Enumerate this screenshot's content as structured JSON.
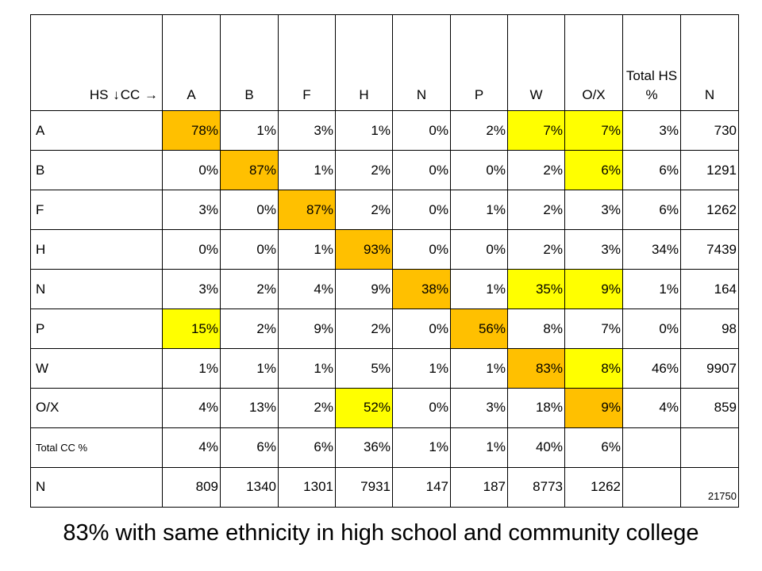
{
  "chart_data": {
    "type": "table",
    "corner": {
      "row_label": "HS",
      "row_arrow": "down-arrow-icon",
      "col_label": "CC",
      "col_arrow": "right-arrow-icon"
    },
    "columns": [
      "A",
      "B",
      "F",
      "H",
      "N",
      "P",
      "W",
      "O/X",
      "Total HS %",
      "N"
    ],
    "rows": [
      {
        "label": "A",
        "cells": [
          "78%",
          "1%",
          "3%",
          "1%",
          "0%",
          "2%",
          "7%",
          "7%",
          "3%",
          "730"
        ],
        "highlight": [
          "orange",
          null,
          null,
          null,
          null,
          null,
          "yellow",
          "yellow",
          null,
          null
        ]
      },
      {
        "label": "B",
        "cells": [
          "0%",
          "87%",
          "1%",
          "2%",
          "0%",
          "0%",
          "2%",
          "6%",
          "6%",
          "1291"
        ],
        "highlight": [
          null,
          "orange",
          null,
          null,
          null,
          null,
          null,
          "yellow",
          null,
          null
        ]
      },
      {
        "label": "F",
        "cells": [
          "3%",
          "0%",
          "87%",
          "2%",
          "0%",
          "1%",
          "2%",
          "3%",
          "6%",
          "1262"
        ],
        "highlight": [
          null,
          null,
          "orange",
          null,
          null,
          null,
          null,
          null,
          null,
          null
        ]
      },
      {
        "label": "H",
        "cells": [
          "0%",
          "0%",
          "1%",
          "93%",
          "0%",
          "0%",
          "2%",
          "3%",
          "34%",
          "7439"
        ],
        "highlight": [
          null,
          null,
          null,
          "orange",
          null,
          null,
          null,
          null,
          null,
          null
        ]
      },
      {
        "label": "N",
        "cells": [
          "3%",
          "2%",
          "4%",
          "9%",
          "38%",
          "1%",
          "35%",
          "9%",
          "1%",
          "164"
        ],
        "highlight": [
          null,
          null,
          null,
          null,
          "orange",
          null,
          "yellow",
          "yellow",
          null,
          null
        ]
      },
      {
        "label": "P",
        "cells": [
          "15%",
          "2%",
          "9%",
          "2%",
          "0%",
          "56%",
          "8%",
          "7%",
          "0%",
          "98"
        ],
        "highlight": [
          "yellow",
          null,
          null,
          null,
          null,
          "orange",
          null,
          null,
          null,
          null
        ]
      },
      {
        "label": "W",
        "cells": [
          "1%",
          "1%",
          "1%",
          "5%",
          "1%",
          "1%",
          "83%",
          "8%",
          "46%",
          "9907"
        ],
        "highlight": [
          null,
          null,
          null,
          null,
          null,
          null,
          "orange",
          "yellow",
          null,
          null
        ]
      },
      {
        "label": "O/X",
        "cells": [
          "4%",
          "13%",
          "2%",
          "52%",
          "0%",
          "3%",
          "18%",
          "9%",
          "4%",
          "859"
        ],
        "highlight": [
          null,
          null,
          null,
          "yellow",
          null,
          null,
          null,
          "orange",
          null,
          null
        ]
      },
      {
        "label": "Total CC %",
        "small": true,
        "cells": [
          "4%",
          "6%",
          "6%",
          "36%",
          "1%",
          "1%",
          "40%",
          "6%",
          "",
          ""
        ],
        "highlight": [
          null,
          null,
          null,
          null,
          null,
          null,
          null,
          null,
          null,
          null
        ]
      },
      {
        "label": "N",
        "cells": [
          "809",
          "1340",
          "1301",
          "7931",
          "147",
          "187",
          "8773",
          "1262",
          "",
          "21750"
        ],
        "highlight": [
          null,
          null,
          null,
          null,
          null,
          null,
          null,
          null,
          null,
          null
        ]
      }
    ],
    "colors": {
      "yellow": "#ffff00",
      "orange": "#ffc000"
    }
  },
  "caption": "83% with same ethnicity in high school and community college"
}
